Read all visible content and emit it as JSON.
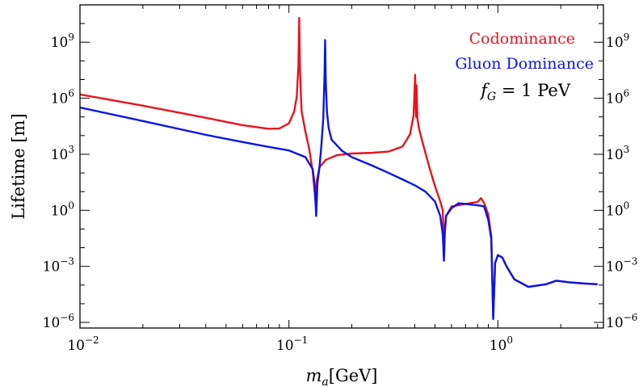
{
  "chart_data": {
    "type": "line",
    "title": "",
    "xlabel_main": "m",
    "xlabel_sub": "a",
    "xlabel_unit": "[GeV]",
    "ylabel": "Lifetime [m]",
    "x_scale": "log",
    "y_scale": "log",
    "xlim": [
      0.01,
      3.2
    ],
    "ylim": [
      5e-07,
      100000000000.0
    ],
    "x_ticks": [
      {
        "value": 0.01,
        "base": "10",
        "exp": "−2"
      },
      {
        "value": 0.1,
        "base": "10",
        "exp": "−1"
      },
      {
        "value": 1,
        "base": "10",
        "exp": "0"
      }
    ],
    "y_ticks": [
      {
        "value": 1e-06,
        "base": "10",
        "exp": "−6"
      },
      {
        "value": 0.001,
        "base": "10",
        "exp": "−3"
      },
      {
        "value": 1,
        "base": "10",
        "exp": "0"
      },
      {
        "value": 1000.0,
        "base": "10",
        "exp": "3"
      },
      {
        "value": 1000000.0,
        "base": "10",
        "exp": "6"
      },
      {
        "value": 1000000000.0,
        "base": "10",
        "exp": "9"
      }
    ],
    "grid": false,
    "legend_position": "top-right",
    "annotation": {
      "main": "f",
      "sub": "G",
      "rest": " = 1 PeV"
    },
    "series": [
      {
        "name": "Codominance",
        "color": "#e8141c",
        "points": [
          [
            0.01,
            1600000.0
          ],
          [
            0.02,
            400000.0
          ],
          [
            0.04,
            90000.0
          ],
          [
            0.06,
            36000.0
          ],
          [
            0.08,
            23000.0
          ],
          [
            0.09,
            24000.0
          ],
          [
            0.1,
            45000.0
          ],
          [
            0.106,
            200000.0
          ],
          [
            0.109,
            1200000.0
          ],
          [
            0.111,
            50000000.0
          ],
          [
            0.112,
            20000000000.0
          ],
          [
            0.113,
            30000000.0
          ],
          [
            0.115,
            200000.0
          ],
          [
            0.12,
            16000.0
          ],
          [
            0.125,
            2000.0
          ],
          [
            0.13,
            120.0
          ],
          [
            0.134,
            3
          ],
          [
            0.136,
            40.0
          ],
          [
            0.14,
            200.0
          ],
          [
            0.15,
            500.0
          ],
          [
            0.17,
            900.0
          ],
          [
            0.2,
            1100.0
          ],
          [
            0.25,
            1200.0
          ],
          [
            0.3,
            1400.0
          ],
          [
            0.35,
            2600.0
          ],
          [
            0.38,
            12000.0
          ],
          [
            0.395,
            120000.0
          ],
          [
            0.402,
            18000000.0
          ],
          [
            0.406,
            100000.0
          ],
          [
            0.408,
            5000000.0
          ],
          [
            0.412,
            80000.0
          ],
          [
            0.42,
            22000.0
          ],
          [
            0.44,
            3000.0
          ],
          [
            0.47,
            200.0
          ],
          [
            0.5,
            20.0
          ],
          [
            0.53,
            3
          ],
          [
            0.545,
            1
          ],
          [
            0.55,
            0.03
          ],
          [
            0.553,
            0.003
          ],
          [
            0.557,
            0.06
          ],
          [
            0.565,
            0.5
          ],
          [
            0.6,
            1.6
          ],
          [
            0.7,
            2.2
          ],
          [
            0.8,
            2.8
          ],
          [
            0.83,
            4.5
          ],
          [
            0.86,
            2.4
          ],
          [
            0.9,
            0.6
          ],
          [
            0.93,
            0.04
          ],
          [
            0.95,
            2e-06
          ],
          [
            0.97,
            0.0015
          ],
          [
            1.0,
            0.004
          ],
          [
            1.05,
            0.003
          ],
          [
            1.1,
            0.001
          ],
          [
            1.2,
            0.0002
          ],
          [
            1.4,
            8e-05
          ],
          [
            1.7,
            0.00011
          ],
          [
            1.9,
            0.00017
          ],
          [
            2.2,
            0.00014
          ],
          [
            2.6,
            0.00012
          ],
          [
            3.0,
            0.00011
          ]
        ]
      },
      {
        "name": "Gluon Dominance",
        "color": "#0a14e6",
        "points": [
          [
            0.01,
            320000.0
          ],
          [
            0.02,
            60000.0
          ],
          [
            0.04,
            11000.0
          ],
          [
            0.06,
            4500.0
          ],
          [
            0.08,
            2500.0
          ],
          [
            0.1,
            1600.0
          ],
          [
            0.12,
            700.0
          ],
          [
            0.13,
            160.0
          ],
          [
            0.133,
            20.0
          ],
          [
            0.135,
            0.5
          ],
          [
            0.137,
            30.0
          ],
          [
            0.14,
            200.0
          ],
          [
            0.143,
            3000.0
          ],
          [
            0.146,
            80000.0
          ],
          [
            0.148,
            15000000.0
          ],
          [
            0.149,
            1300000000.0
          ],
          [
            0.15,
            10000000.0
          ],
          [
            0.152,
            200000.0
          ],
          [
            0.155,
            25000.0
          ],
          [
            0.16,
            6000.0
          ],
          [
            0.18,
            1500.0
          ],
          [
            0.2,
            700.0
          ],
          [
            0.25,
            250.0
          ],
          [
            0.3,
            100.0
          ],
          [
            0.35,
            45.0
          ],
          [
            0.4,
            22.0
          ],
          [
            0.45,
            10.0
          ],
          [
            0.5,
            3
          ],
          [
            0.53,
            0.5
          ],
          [
            0.545,
            0.05
          ],
          [
            0.552,
            0.002
          ],
          [
            0.556,
            0.05
          ],
          [
            0.565,
            0.5
          ],
          [
            0.6,
            1.3
          ],
          [
            0.65,
            2.4
          ],
          [
            0.75,
            2
          ],
          [
            0.82,
            1.8
          ],
          [
            0.86,
            1.6
          ],
          [
            0.9,
            0.3
          ],
          [
            0.93,
            0.03
          ],
          [
            0.95,
            1.5e-06
          ],
          [
            0.97,
            0.0015
          ],
          [
            1.0,
            0.004
          ],
          [
            1.05,
            0.003
          ],
          [
            1.1,
            0.001
          ],
          [
            1.2,
            0.0002
          ],
          [
            1.4,
            8e-05
          ],
          [
            1.7,
            0.00011
          ],
          [
            1.9,
            0.00017
          ],
          [
            2.2,
            0.00014
          ],
          [
            2.6,
            0.00012
          ],
          [
            3.0,
            0.00011
          ]
        ]
      }
    ]
  }
}
